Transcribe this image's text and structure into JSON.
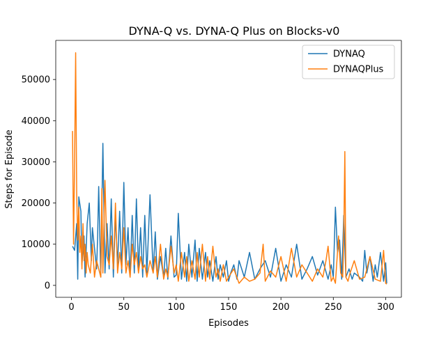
{
  "chart_data": {
    "type": "line",
    "title": "DYNA-Q vs. DYNA-Q Plus on Blocks-v0",
    "xlabel": "Episodes",
    "ylabel": "Steps for Episode",
    "xlim": [
      -15,
      315
    ],
    "ylim": [
      -2900,
      59500
    ],
    "x_ticks": [
      0,
      50,
      100,
      150,
      200,
      250,
      300
    ],
    "x_tick_labels": [
      "0",
      "50",
      "100",
      "150",
      "200",
      "250",
      "300"
    ],
    "y_ticks": [
      0,
      10000,
      20000,
      30000,
      40000,
      50000
    ],
    "y_tick_labels": [
      "0",
      "10000",
      "20000",
      "30000",
      "40000",
      "50000"
    ],
    "grid": false,
    "legend": {
      "location": "upper right"
    },
    "series": [
      {
        "name": "DYNAQ",
        "color": "#1f77b4",
        "x": [
          1,
          3,
          5,
          6,
          7,
          9,
          10,
          12,
          13,
          15,
          17,
          19,
          20,
          22,
          24,
          25,
          26,
          28,
          30,
          32,
          34,
          36,
          38,
          40,
          42,
          44,
          46,
          48,
          50,
          52,
          54,
          56,
          58,
          60,
          62,
          64,
          66,
          68,
          70,
          72,
          75,
          78,
          80,
          82,
          85,
          88,
          90,
          92,
          95,
          98,
          100,
          102,
          105,
          108,
          110,
          112,
          115,
          118,
          120,
          122,
          125,
          128,
          130,
          132,
          135,
          138,
          140,
          142,
          145,
          148,
          150,
          152,
          155,
          158,
          160,
          165,
          170,
          175,
          180,
          185,
          190,
          195,
          200,
          205,
          210,
          215,
          220,
          225,
          230,
          235,
          240,
          245,
          248,
          250,
          252,
          254,
          256,
          258,
          260,
          262,
          265,
          268,
          270,
          275,
          278,
          280,
          282,
          285,
          288,
          290,
          292,
          295,
          298,
          300,
          301
        ],
        "values": [
          9500,
          8500,
          15000,
          1500,
          21500,
          18000,
          5000,
          12000,
          2000,
          15000,
          20000,
          6000,
          14000,
          9000,
          4000,
          12000,
          24000,
          2000,
          34500,
          3000,
          15000,
          4000,
          21000,
          2000,
          17000,
          5000,
          18000,
          3000,
          25000,
          5000,
          14000,
          2000,
          17000,
          3000,
          21000,
          4000,
          14000,
          2000,
          17000,
          3000,
          22000,
          3000,
          13000,
          1500,
          7000,
          2000,
          9000,
          1500,
          12000,
          2000,
          2500,
          17500,
          1500,
          8000,
          1000,
          10000,
          2000,
          11000,
          1000,
          9000,
          1500,
          8000,
          2000,
          6000,
          1000,
          7000,
          1500,
          5000,
          2000,
          6000,
          1000,
          3000,
          5000,
          1500,
          6000,
          2000,
          8000,
          1500,
          4000,
          6000,
          2000,
          9000,
          1000,
          5000,
          2000,
          10000,
          1500,
          4000,
          7000,
          2500,
          6000,
          1500,
          5000,
          2000,
          19000,
          8000,
          11000,
          1500,
          17000,
          2000,
          4000,
          1500,
          3000,
          2000,
          1000,
          8500,
          3000,
          7000,
          1000,
          5000,
          2000,
          8000,
          1000,
          5500,
          500
        ]
      },
      {
        "name": "DYNAQPlus",
        "color": "#ff7f0e",
        "x": [
          1,
          2,
          3,
          4,
          5,
          6,
          7,
          8,
          9,
          10,
          11,
          12,
          13,
          14,
          15,
          16,
          18,
          20,
          22,
          24,
          26,
          28,
          29,
          30,
          32,
          34,
          36,
          38,
          40,
          42,
          44,
          46,
          48,
          50,
          52,
          54,
          56,
          58,
          60,
          62,
          64,
          66,
          68,
          70,
          72,
          75,
          78,
          80,
          82,
          85,
          88,
          90,
          92,
          95,
          98,
          100,
          102,
          105,
          108,
          110,
          112,
          115,
          118,
          120,
          122,
          125,
          128,
          130,
          132,
          135,
          138,
          140,
          142,
          145,
          148,
          150,
          155,
          160,
          165,
          170,
          175,
          180,
          183,
          185,
          190,
          195,
          200,
          205,
          210,
          215,
          220,
          225,
          230,
          235,
          240,
          243,
          245,
          248,
          250,
          252,
          255,
          257,
          259,
          260,
          261,
          262,
          264,
          266,
          270,
          275,
          280,
          285,
          290,
          295,
          298,
          300,
          301
        ],
        "values": [
          37500,
          10000,
          30000,
          56500,
          22000,
          11000,
          19000,
          8000,
          12000,
          4000,
          15000,
          6000,
          10000,
          3000,
          8000,
          5000,
          3000,
          10000,
          2000,
          6000,
          4000,
          2000,
          23500,
          3000,
          25500,
          7000,
          5000,
          12000,
          4000,
          20000,
          3000,
          8000,
          4000,
          14000,
          3000,
          6000,
          2000,
          10000,
          5000,
          8000,
          3000,
          7000,
          4000,
          5000,
          2000,
          6000,
          3000,
          7000,
          2000,
          10000,
          1500,
          4000,
          2000,
          9500,
          3000,
          5000,
          1000,
          8000,
          2000,
          7000,
          1000,
          6000,
          1500,
          8000,
          2000,
          10000,
          1000,
          7000,
          1500,
          9500,
          2000,
          4000,
          1000,
          5000,
          1000,
          2000,
          4000,
          500,
          2000,
          1000,
          1500,
          3000,
          10000,
          1000,
          3500,
          2000,
          7000,
          1000,
          9000,
          2000,
          5000,
          3000,
          1000,
          4000,
          2000,
          6000,
          9500,
          1000,
          2000,
          500,
          12000,
          3000,
          2000,
          12000,
          32500,
          2000,
          1000,
          3000,
          6000,
          1500,
          2000,
          7000,
          1500,
          1000,
          8500,
          500,
          300
        ]
      }
    ]
  }
}
